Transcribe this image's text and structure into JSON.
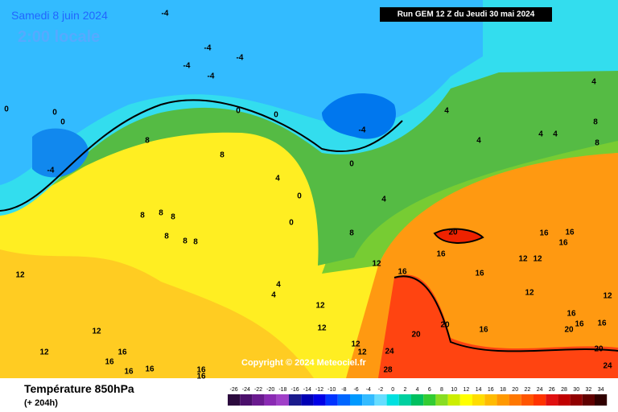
{
  "header": {
    "date": "Samedi 8 juin 2024",
    "time": "2:00 locale",
    "run": "Run GEM 12 Z du Jeudi 30 mai 2024",
    "copyright": "Copyright © 2024 Meteociel.fr"
  },
  "footer": {
    "title": "Température 850hPa",
    "lead": "(+ 204h)"
  },
  "contour_labels": [
    -4,
    -4,
    -4,
    -4,
    -4,
    -4,
    -4,
    0,
    0,
    0,
    0,
    0,
    0,
    0,
    0,
    4,
    4,
    4,
    4,
    4,
    4,
    4,
    4,
    4,
    8,
    8,
    8,
    8,
    8,
    8,
    8,
    8,
    8,
    8,
    8,
    12,
    12,
    12,
    12,
    12,
    12,
    12,
    12,
    12,
    12,
    12,
    12,
    16,
    16,
    16,
    16,
    16,
    16,
    16,
    16,
    16,
    16,
    16,
    16,
    16,
    16,
    16,
    16,
    20,
    20,
    20,
    20,
    20,
    24,
    24,
    28
  ],
  "colorbar": {
    "values": [
      -26,
      -24,
      -22,
      -20,
      -18,
      -16,
      -14,
      -12,
      -10,
      -8,
      -6,
      -4,
      -2,
      0,
      2,
      4,
      6,
      8,
      10,
      12,
      14,
      16,
      18,
      20,
      22,
      24,
      26,
      28,
      30,
      32,
      34
    ],
    "colors": [
      "#2b0a3d",
      "#4b0f6b",
      "#6a1a8f",
      "#8a2ab3",
      "#a040c8",
      "#1a1a8c",
      "#0000b4",
      "#0000e6",
      "#0033ff",
      "#0066ff",
      "#0099ff",
      "#33bbff",
      "#66ddff",
      "#00e0e0",
      "#00d0a0",
      "#00c060",
      "#33cc33",
      "#88dd22",
      "#ccee00",
      "#ffff00",
      "#ffdd00",
      "#ffbb00",
      "#ff9900",
      "#ff7700",
      "#ff5500",
      "#ff3300",
      "#e01010",
      "#c00000",
      "#900000",
      "#600000",
      "#300000"
    ]
  }
}
